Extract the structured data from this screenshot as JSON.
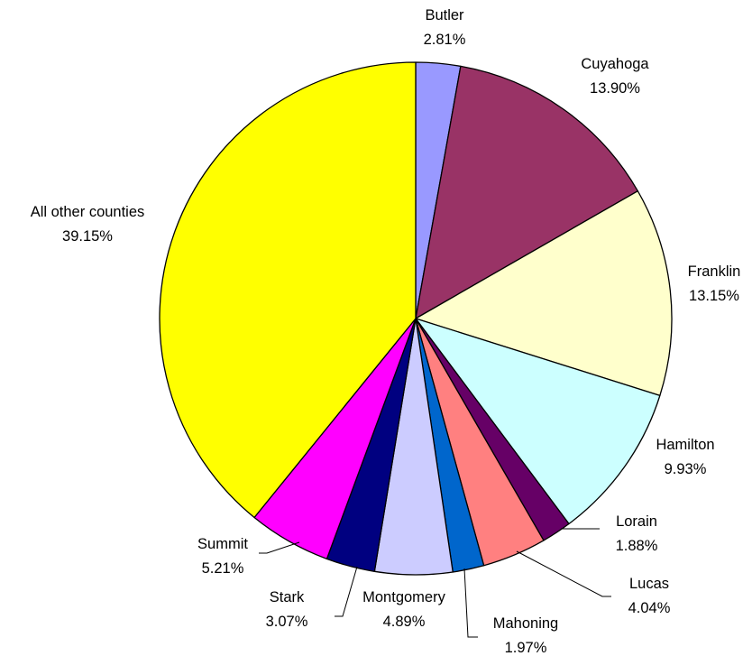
{
  "chart_data": {
    "type": "pie",
    "title": "",
    "slices": [
      {
        "name": "Butler",
        "value": 2.81,
        "label": "2.81%",
        "color": "#9999ff"
      },
      {
        "name": "Cuyahoga",
        "value": 13.9,
        "label": "13.90%",
        "color": "#993366"
      },
      {
        "name": "Franklin",
        "value": 13.15,
        "label": "13.15%",
        "color": "#ffffcc"
      },
      {
        "name": "Hamilton",
        "value": 9.93,
        "label": "9.93%",
        "color": "#ccffff"
      },
      {
        "name": "Lorain",
        "value": 1.88,
        "label": "1.88%",
        "color": "#660066"
      },
      {
        "name": "Lucas",
        "value": 4.04,
        "label": "4.04%",
        "color": "#ff8080"
      },
      {
        "name": "Mahoning",
        "value": 1.97,
        "label": "1.97%",
        "color": "#0066cc"
      },
      {
        "name": "Montgomery",
        "value": 4.89,
        "label": "4.89%",
        "color": "#ccccff"
      },
      {
        "name": "Stark",
        "value": 3.07,
        "label": "3.07%",
        "color": "#000080"
      },
      {
        "name": "Summit",
        "value": 5.21,
        "label": "5.21%",
        "color": "#ff00ff"
      },
      {
        "name": "All other counties",
        "value": 39.15,
        "label": "39.15%",
        "color": "#ffff00"
      }
    ],
    "start_angle": "12 o'clock",
    "direction": "clockwise",
    "legend": "none"
  }
}
